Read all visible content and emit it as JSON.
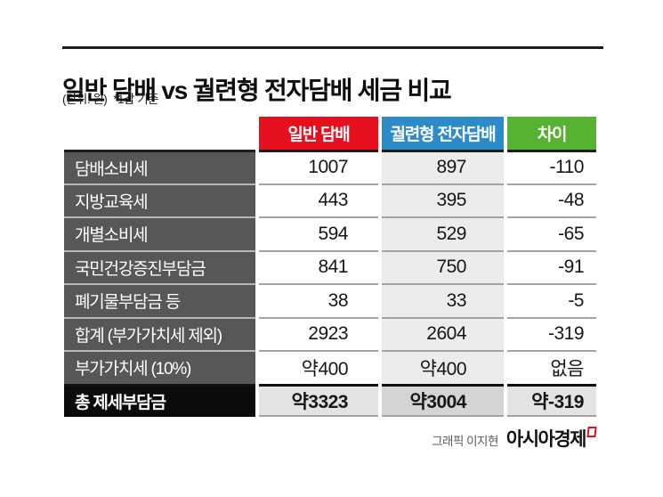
{
  "header": {
    "title": "일반 담배 vs 궐련형 전자담배 세금 비교",
    "unit_note": "(단위: 원)",
    "basis_note": "*1갑 기준"
  },
  "table": {
    "columns": [
      "일반 담배",
      "궐련형 전자담배",
      "차이"
    ],
    "rows": [
      {
        "label": "담배소비세",
        "regular": "1007",
        "heated": "897",
        "diff": "-110"
      },
      {
        "label": "지방교육세",
        "regular": "443",
        "heated": "395",
        "diff": "-48"
      },
      {
        "label": "개별소비세",
        "regular": "594",
        "heated": "529",
        "diff": "-65"
      },
      {
        "label": "국민건강증진부담금",
        "regular": "841",
        "heated": "750",
        "diff": "-91"
      },
      {
        "label": "폐기물부담금 등",
        "regular": "38",
        "heated": "33",
        "diff": "-5"
      },
      {
        "label": "합계 (부가가치세 제외)",
        "regular": "2923",
        "heated": "2604",
        "diff": "-319"
      },
      {
        "label": "부가가치세 (10%)",
        "regular": "약400",
        "heated": "약400",
        "diff": "없음"
      },
      {
        "label": "총 제세부담금",
        "regular": "약3323",
        "heated": "약3004",
        "diff": "약-319",
        "total": true
      }
    ]
  },
  "chart_data": {
    "type": "table",
    "title": "일반 담배 vs 궐련형 전자담배 세금 비교",
    "unit": "원, 1갑 기준",
    "columns": [
      "일반 담배",
      "궐련형 전자담배",
      "차이"
    ],
    "rows": [
      {
        "label": "담배소비세",
        "values": [
          1007,
          897,
          -110
        ]
      },
      {
        "label": "지방교육세",
        "values": [
          443,
          395,
          -48
        ]
      },
      {
        "label": "개별소비세",
        "values": [
          594,
          529,
          -65
        ]
      },
      {
        "label": "국민건강증진부담금",
        "values": [
          841,
          750,
          -91
        ]
      },
      {
        "label": "폐기물부담금 등",
        "values": [
          38,
          33,
          -5
        ]
      },
      {
        "label": "합계 (부가가치세 제외)",
        "values": [
          2923,
          2604,
          -319
        ]
      },
      {
        "label": "부가가치세 (10%)",
        "values": [
          "약400",
          "약400",
          "없음"
        ]
      },
      {
        "label": "총 제세부담금",
        "values": [
          "약3323",
          "약3004",
          "약-319"
        ]
      }
    ]
  },
  "footer": {
    "credit": "그래픽 이지현",
    "brand": "아시아경제"
  },
  "colors": {
    "regular_header": "#e60f1e",
    "heated_header": "#2e8bc9",
    "diff_header": "#56b230",
    "label_bg": "#585657",
    "heated_col_bg": "#ececec",
    "total_label_bg": "#0b0b0b",
    "total_side_bg": "#e3e3e3",
    "total_mid_bg": "#d4d4d4"
  }
}
